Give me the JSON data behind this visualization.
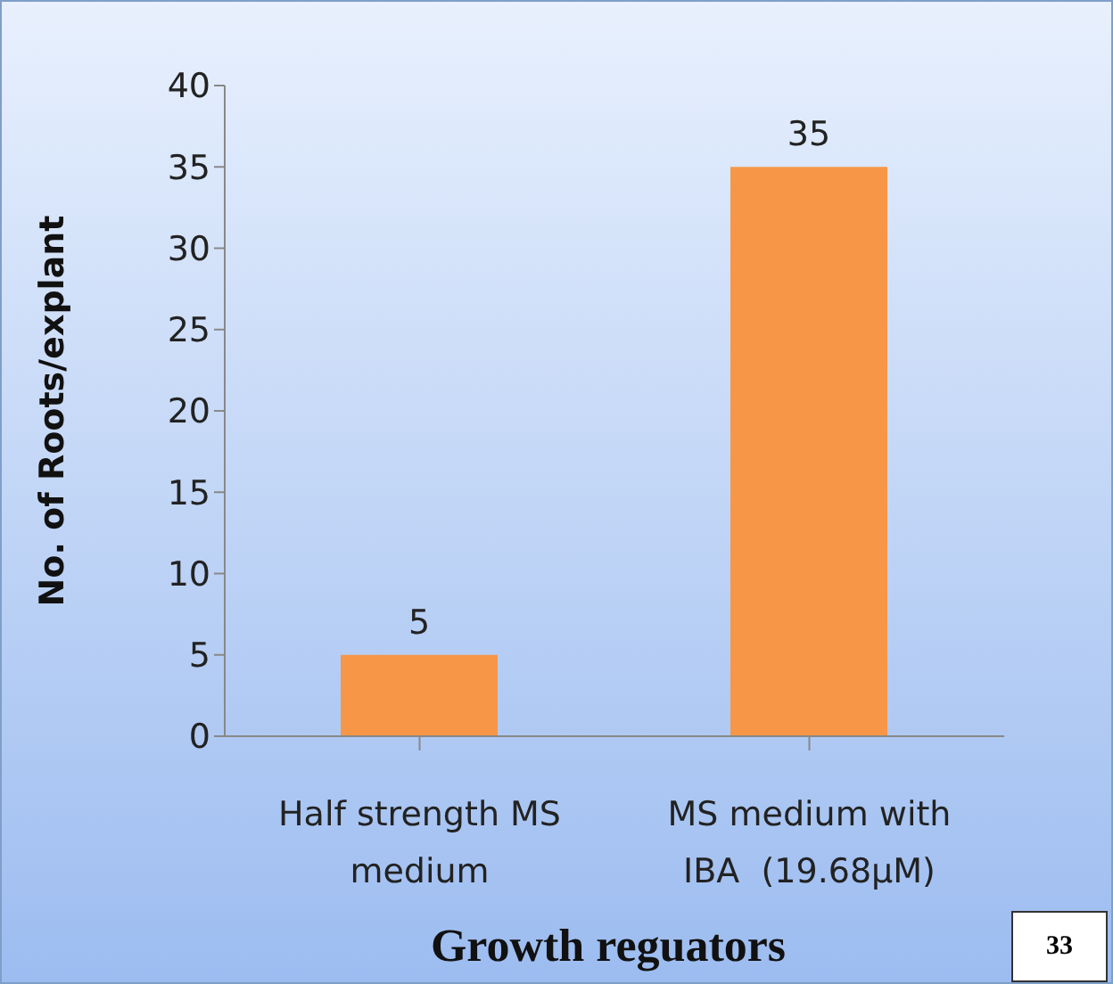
{
  "chart_data": {
    "type": "bar",
    "xlabel": "Growth reguators",
    "ylabel": "No. of Roots/explant",
    "categories": [
      "Half strength MS medium",
      "MS medium with IBA  (19.68µM)"
    ],
    "values": [
      5,
      35
    ],
    "color": "#f79646",
    "ylim": [
      0,
      40
    ],
    "yticks": [
      0,
      5,
      10,
      15,
      20,
      25,
      30,
      35,
      40
    ],
    "grid": false,
    "data_labels": true,
    "annotations": [
      "33"
    ]
  }
}
